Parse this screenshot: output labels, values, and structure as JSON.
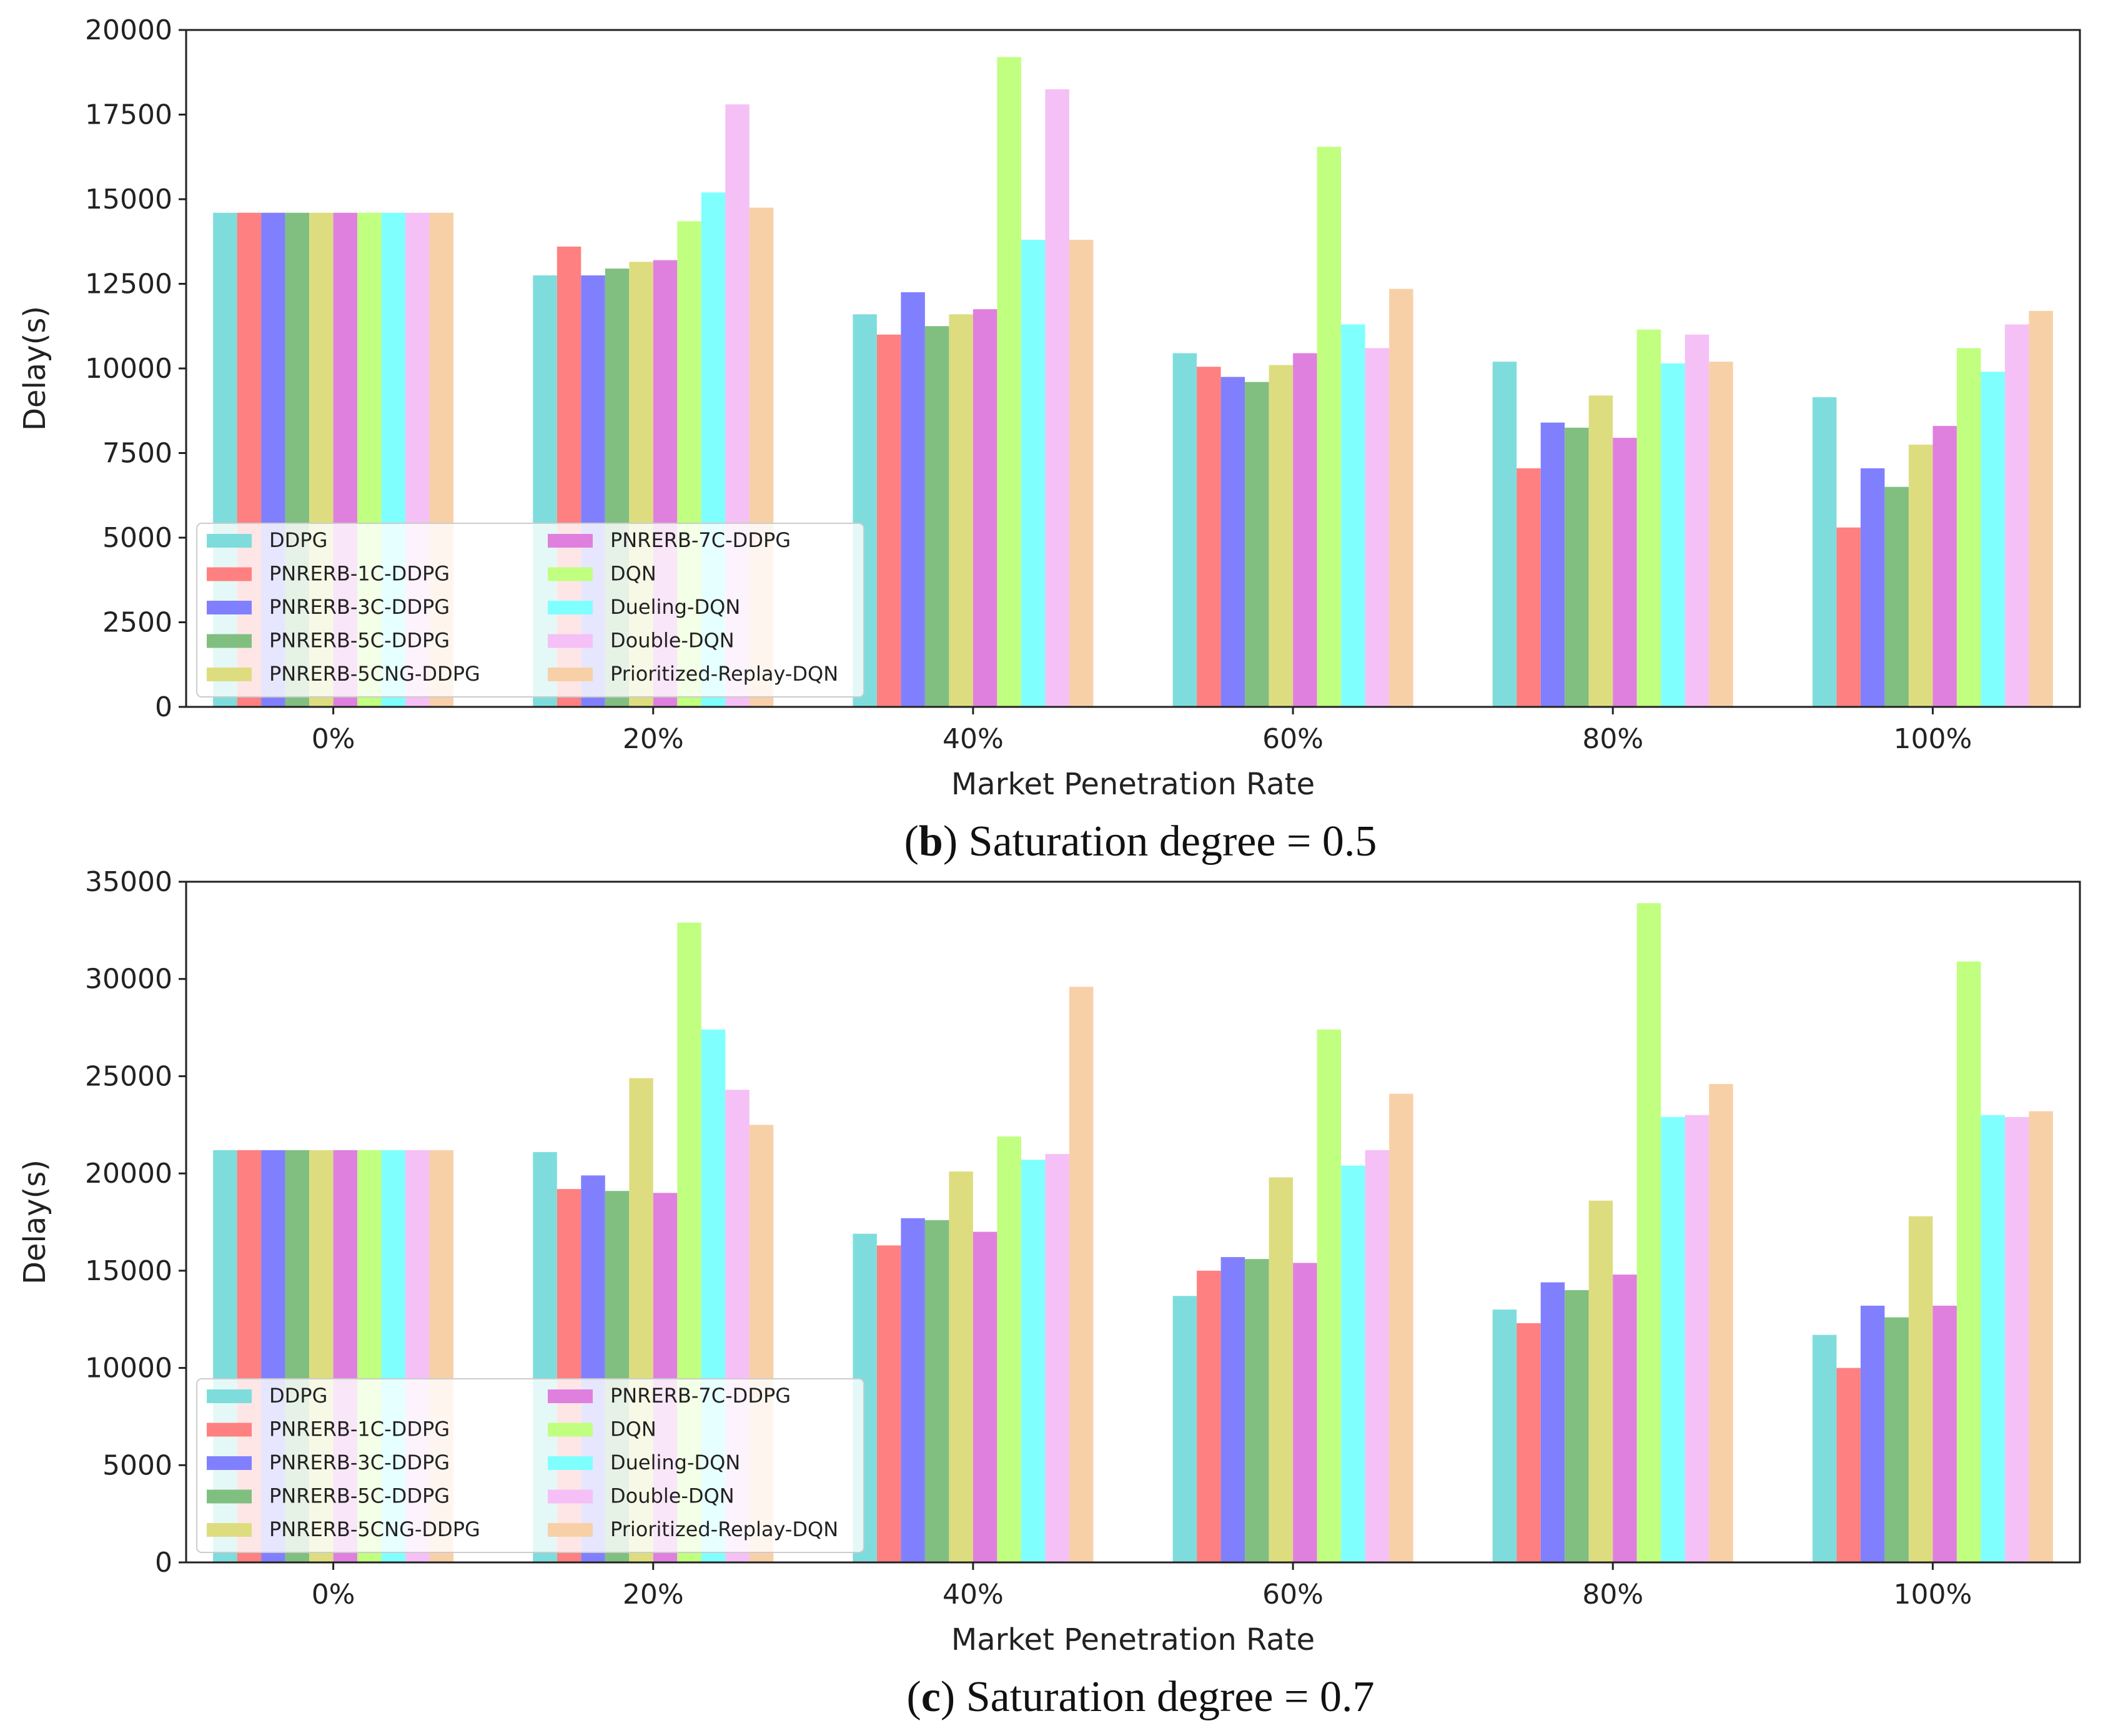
{
  "chart_data": [
    {
      "type": "bar",
      "caption_letter": "b",
      "caption_text": " Saturation degree = 0.5",
      "title": "",
      "xlabel": "Market Penetration Rate",
      "ylabel": "Delay(s)",
      "ylim": [
        0,
        20000
      ],
      "yticks": [
        0,
        2500,
        5000,
        7500,
        10000,
        12500,
        15000,
        17500,
        20000
      ],
      "grid": false,
      "legend_position": "lower-left",
      "categories": [
        "0%",
        "20%",
        "40%",
        "60%",
        "80%",
        "100%"
      ],
      "series": [
        {
          "name": "DDPG",
          "color": "#7fdcdc",
          "values": [
            14600,
            12750,
            11600,
            10450,
            10200,
            9150
          ]
        },
        {
          "name": "PNRERB-1C-DDPG",
          "color": "#ff8080",
          "values": [
            14600,
            13600,
            11000,
            10050,
            7050,
            5300
          ]
        },
        {
          "name": "PNRERB-3C-DDPG",
          "color": "#8080ff",
          "values": [
            14600,
            12750,
            12250,
            9750,
            8400,
            7050
          ]
        },
        {
          "name": "PNRERB-5C-DDPG",
          "color": "#80bf80",
          "values": [
            14600,
            12950,
            11250,
            9600,
            8250,
            6500
          ]
        },
        {
          "name": "PNRERB-5CNG-DDPG",
          "color": "#dddd80",
          "values": [
            14600,
            13150,
            11600,
            10100,
            9200,
            7750
          ]
        },
        {
          "name": "PNRERB-7C-DDPG",
          "color": "#df80df",
          "values": [
            14600,
            13200,
            11750,
            10450,
            7950,
            8300
          ]
        },
        {
          "name": "DQN",
          "color": "#c0ff80",
          "values": [
            14600,
            14350,
            19200,
            16550,
            11150,
            10600
          ]
        },
        {
          "name": "Dueling-DQN",
          "color": "#80ffff",
          "values": [
            14600,
            15200,
            13800,
            11300,
            10150,
            9900
          ]
        },
        {
          "name": "Double-DQN",
          "color": "#f5c0f5",
          "values": [
            14600,
            17800,
            18250,
            10600,
            11000,
            11300
          ]
        },
        {
          "name": "Prioritized-Replay-DQN",
          "color": "#f8d0a8",
          "values": [
            14600,
            14750,
            13800,
            12350,
            10200,
            11700
          ]
        }
      ]
    },
    {
      "type": "bar",
      "caption_letter": "c",
      "caption_text": " Saturation degree = 0.7",
      "title": "",
      "xlabel": "Market Penetration Rate",
      "ylabel": "Delay(s)",
      "ylim": [
        0,
        35000
      ],
      "yticks": [
        0,
        5000,
        10000,
        15000,
        20000,
        25000,
        30000,
        35000
      ],
      "grid": false,
      "legend_position": "lower-left",
      "categories": [
        "0%",
        "20%",
        "40%",
        "60%",
        "80%",
        "100%"
      ],
      "series": [
        {
          "name": "DDPG",
          "color": "#7fdcdc",
          "values": [
            21200,
            21100,
            16900,
            13700,
            13000,
            11700
          ]
        },
        {
          "name": "PNRERB-1C-DDPG",
          "color": "#ff8080",
          "values": [
            21200,
            19200,
            16300,
            15000,
            12300,
            10000
          ]
        },
        {
          "name": "PNRERB-3C-DDPG",
          "color": "#8080ff",
          "values": [
            21200,
            19900,
            17700,
            15700,
            14400,
            13200
          ]
        },
        {
          "name": "PNRERB-5C-DDPG",
          "color": "#80bf80",
          "values": [
            21200,
            19100,
            17600,
            15600,
            14000,
            12600
          ]
        },
        {
          "name": "PNRERB-5CNG-DDPG",
          "color": "#dddd80",
          "values": [
            21200,
            24900,
            20100,
            19800,
            18600,
            17800
          ]
        },
        {
          "name": "PNRERB-7C-DDPG",
          "color": "#df80df",
          "values": [
            21200,
            19000,
            17000,
            15400,
            14800,
            13200
          ]
        },
        {
          "name": "DQN",
          "color": "#c0ff80",
          "values": [
            21200,
            32900,
            21900,
            27400,
            33900,
            30900
          ]
        },
        {
          "name": "Dueling-DQN",
          "color": "#80ffff",
          "values": [
            21200,
            27400,
            20700,
            20400,
            22900,
            23000
          ]
        },
        {
          "name": "Double-DQN",
          "color": "#f5c0f5",
          "values": [
            21200,
            24300,
            21000,
            21200,
            23000,
            22900
          ]
        },
        {
          "name": "Prioritized-Replay-DQN",
          "color": "#f8d0a8",
          "values": [
            21200,
            22500,
            29600,
            24100,
            24600,
            23200
          ]
        }
      ]
    }
  ]
}
